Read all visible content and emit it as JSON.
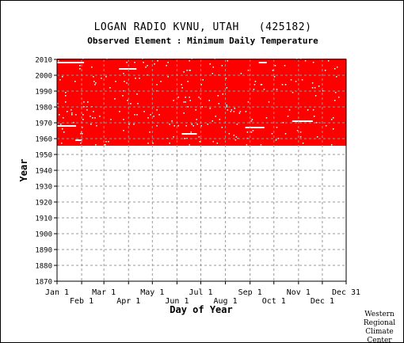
{
  "chart_data": {
    "type": "heatmap",
    "title": "LOGAN RADIO KVNU, UTAH   (425182)",
    "subtitle": "Observed Element : Minimum Daily Temperature",
    "xlabel": "Day of Year",
    "ylabel": "Year",
    "x_ticks_top_row": [
      "Jan 1",
      "Mar 1",
      "May 1",
      "Jul 1",
      "Sep 1",
      "Nov 1",
      "Dec 31"
    ],
    "x_ticks_bottom_row": [
      "Feb 1",
      "Apr 1",
      "Jun 1",
      "Aug 1",
      "Oct 1",
      "Dec 1"
    ],
    "x_tick_days": [
      1,
      32,
      60,
      91,
      121,
      152,
      182,
      213,
      244,
      274,
      305,
      335,
      365
    ],
    "xlim": [
      1,
      365
    ],
    "y_ticks": [
      1870,
      1880,
      1890,
      1900,
      1910,
      1920,
      1930,
      1940,
      1950,
      1960,
      1970,
      1980,
      1990,
      2000,
      2010
    ],
    "ylim": [
      1870,
      2010
    ],
    "grid": true,
    "data_color": "#ff0000",
    "missing_color": "#ffffff",
    "record_years": [
      1956,
      2010
    ],
    "missing_runs": [
      {
        "year": 1968,
        "day_start": 1,
        "day_end": 25
      },
      {
        "year": 1959,
        "day_start": 24,
        "day_end": 31
      },
      {
        "year": 2004,
        "day_start": 79,
        "day_end": 101
      },
      {
        "year": 1963,
        "day_start": 158,
        "day_end": 177
      },
      {
        "year": 1967,
        "day_start": 238,
        "day_end": 262
      },
      {
        "year": 1971,
        "day_start": 297,
        "day_end": 323
      },
      {
        "year": 2008,
        "day_start": 1,
        "day_end": 35
      },
      {
        "year": 2008,
        "day_start": 255,
        "day_end": 265
      }
    ]
  },
  "credit": "Western\nRegional\nClimate\nCenter"
}
